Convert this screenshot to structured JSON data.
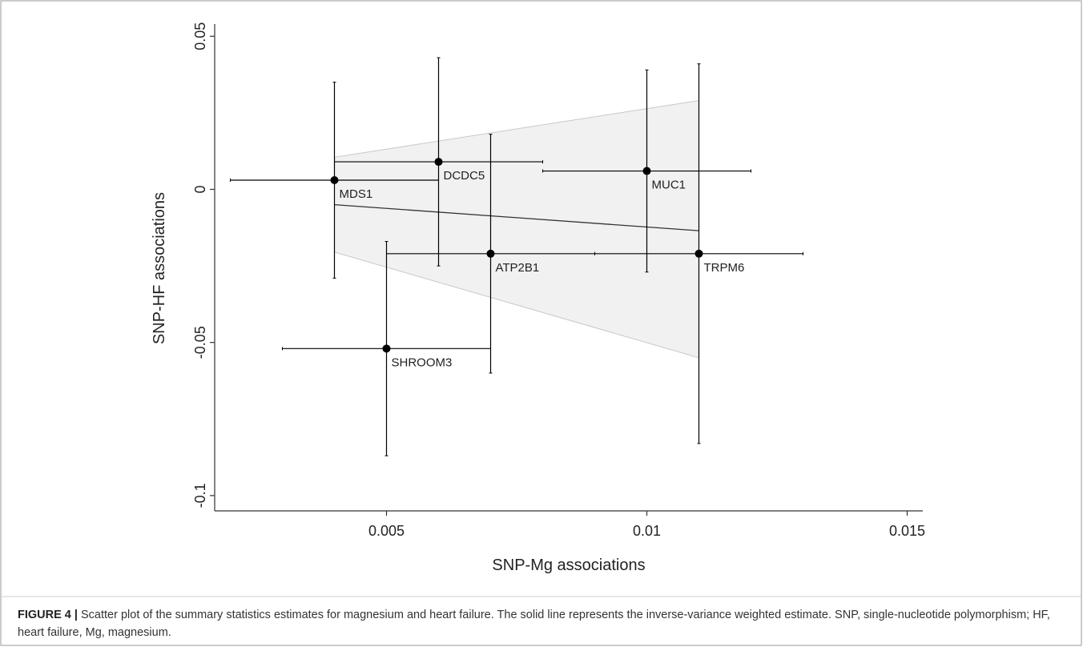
{
  "chart_data": {
    "type": "scatter",
    "x_label": "SNP-Mg associations",
    "y_label": "SNP-HF associations",
    "xlim": [
      0.0017,
      0.0153
    ],
    "ylim": [
      -0.105,
      0.054
    ],
    "xticks": [
      0.005,
      0.01,
      0.015
    ],
    "yticks": [
      0.05,
      0,
      -0.05,
      -0.1
    ],
    "color": "#000000",
    "points": [
      {
        "name": "MDS1",
        "x": 0.004,
        "y": 0.003,
        "x_low": 0.002,
        "x_high": 0.006,
        "y_low": -0.029,
        "y_high": 0.035
      },
      {
        "name": "DCDC5",
        "x": 0.006,
        "y": 0.009,
        "x_low": 0.004,
        "x_high": 0.008,
        "y_low": -0.025,
        "y_high": 0.043
      },
      {
        "name": "MUC1",
        "x": 0.01,
        "y": 0.006,
        "x_low": 0.008,
        "x_high": 0.012,
        "y_low": -0.027,
        "y_high": 0.039
      },
      {
        "name": "ATP2B1",
        "x": 0.007,
        "y": -0.021,
        "x_low": 0.005,
        "x_high": 0.009,
        "y_low": -0.06,
        "y_high": 0.018
      },
      {
        "name": "TRPM6",
        "x": 0.011,
        "y": -0.021,
        "x_low": 0.009,
        "x_high": 0.013,
        "y_low": -0.083,
        "y_high": 0.041
      },
      {
        "name": "SHROOM3",
        "x": 0.005,
        "y": -0.052,
        "x_low": 0.003,
        "x_high": 0.007,
        "y_low": -0.087,
        "y_high": -0.017
      }
    ],
    "fit": {
      "x": [
        0.004,
        0.011
      ],
      "y": [
        -0.005,
        -0.0135
      ],
      "lower": [
        -0.0205,
        -0.055
      ],
      "upper": [
        0.0105,
        0.029
      ]
    },
    "caption_label": "FIGURE 4 |",
    "caption": "Scatter plot of the summary statistics estimates for magnesium and heart failure. The solid line represents the inverse-variance weighted estimate. SNP, single-nucleotide polymorphism; HF, heart failure, Mg, magnesium."
  }
}
